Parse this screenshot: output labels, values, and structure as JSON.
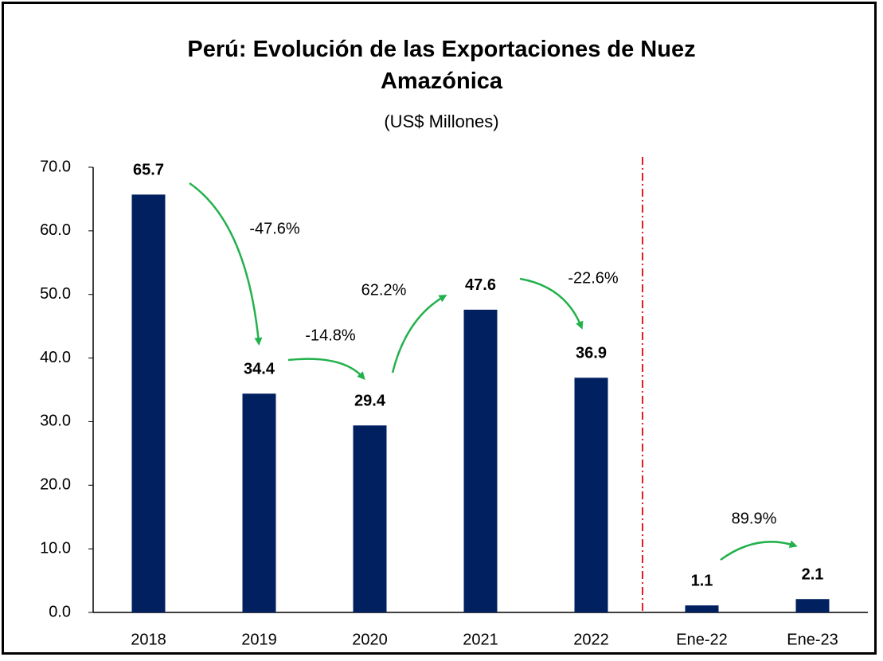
{
  "chart_data": {
    "type": "bar",
    "title": "Perú: Evolución de las Exportaciones de Nuez Amazónica",
    "subtitle": "(US$ Millones)",
    "categories": [
      "2018",
      "2019",
      "2020",
      "2021",
      "2022",
      "Ene-22",
      "Ene-23"
    ],
    "values": [
      65.7,
      34.4,
      29.4,
      47.6,
      36.9,
      1.1,
      2.1
    ],
    "color": "#002060",
    "ylim": [
      0,
      70
    ],
    "yticks": [
      {
        "value": 0,
        "label": "0.0"
      },
      {
        "value": 10,
        "label": "10.0"
      },
      {
        "value": 20,
        "label": "20.0"
      },
      {
        "value": 30,
        "label": "30.0"
      },
      {
        "value": 40,
        "label": "40.0"
      },
      {
        "value": 50,
        "label": "50.0"
      },
      {
        "value": 60,
        "label": "60.0"
      },
      {
        "value": 70,
        "label": "70.0"
      }
    ],
    "grid": false,
    "annotations": [
      "-47.6%",
      "-14.8%",
      "62.2%",
      "-22.6%",
      "89.9%"
    ],
    "annotation_color": "#22b14c"
  }
}
